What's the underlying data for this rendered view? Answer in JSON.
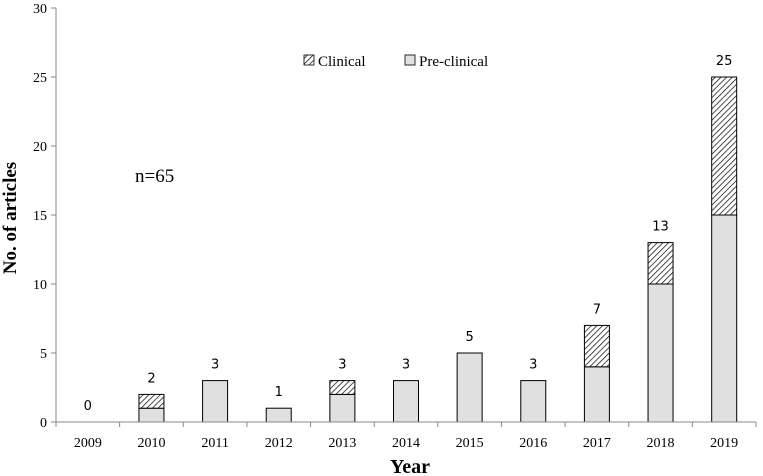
{
  "chart_data": {
    "type": "bar",
    "stacked": true,
    "categories": [
      "2009",
      "2010",
      "2011",
      "2012",
      "2013",
      "2014",
      "2015",
      "2016",
      "2017",
      "2018",
      "2019"
    ],
    "series": [
      {
        "name": "Pre-clinical",
        "values": [
          0,
          1,
          3,
          1,
          2,
          3,
          5,
          3,
          4,
          10,
          15
        ],
        "color": "#e0e0e0",
        "pattern": "solid"
      },
      {
        "name": "Clinical",
        "values": [
          0,
          1,
          0,
          0,
          1,
          0,
          0,
          0,
          3,
          3,
          10
        ],
        "color": "#ffffff",
        "pattern": "diagonal-hatch"
      }
    ],
    "totals": [
      0,
      2,
      3,
      1,
      3,
      3,
      5,
      3,
      7,
      13,
      25
    ],
    "xlabel": "Year",
    "ylabel": "No. of articles",
    "ylim": [
      0,
      30
    ],
    "yticks": [
      0,
      5,
      10,
      15,
      20,
      25,
      30
    ],
    "annotation": "n=65",
    "legend": {
      "placement": "top-center",
      "order": [
        "Clinical",
        "Pre-clinical"
      ]
    },
    "grid": false
  }
}
